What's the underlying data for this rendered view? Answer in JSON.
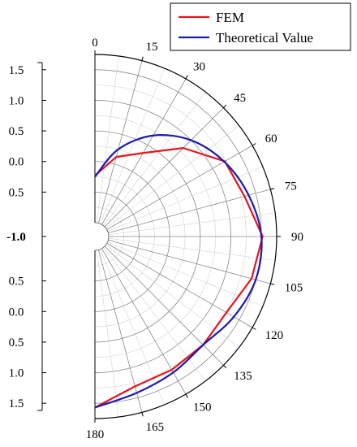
{
  "chart_data": {
    "type": "line",
    "subtype": "polar-half",
    "title": "",
    "angle_unit": "degrees",
    "angle_ticks": [
      "0",
      "15",
      "30",
      "45",
      "60",
      "75",
      "90",
      "105",
      "120",
      "135",
      "150",
      "165",
      "180"
    ],
    "radial_axis": {
      "tick_labels": [
        "1.5",
        "1.0",
        "0.5",
        "0.0",
        "-0.5",
        "-1.0",
        "-0.5",
        "0.0",
        "0.5",
        "1.0",
        "1.5"
      ],
      "bold_label": "-1.0",
      "rlim": [
        -1.0,
        1.75
      ]
    },
    "grid": true,
    "legend": {
      "placement": "top-right",
      "entries": [
        {
          "label": "FEM",
          "color": "#e8141c"
        },
        {
          "label": "Theoretical Value",
          "color": "#1a1ab4"
        }
      ]
    },
    "series": [
      {
        "name": "FEM",
        "color": "#e8141c",
        "points": [
          {
            "theta": 0,
            "r": -0.23
          },
          {
            "theta": 15,
            "r": 0.12
          },
          {
            "theta": 30,
            "r": 0.35
          },
          {
            "theta": 45,
            "r": 0.82
          },
          {
            "theta": 60,
            "r": 1.23
          },
          {
            "theta": 75,
            "r": 1.31
          },
          {
            "theta": 90,
            "r": 1.52
          },
          {
            "theta": 105,
            "r": 1.43
          },
          {
            "theta": 120,
            "r": 1.26
          },
          {
            "theta": 135,
            "r": 1.28
          },
          {
            "theta": 150,
            "r": 1.29
          },
          {
            "theta": 165,
            "r": 1.31
          },
          {
            "theta": 180,
            "r": 1.57
          }
        ]
      },
      {
        "name": "Theoretical Value",
        "color": "#1a1ab4",
        "points": [
          {
            "theta": 0,
            "r": -0.25
          },
          {
            "theta": 15,
            "r": 0.25
          },
          {
            "theta": 30,
            "r": 0.68
          },
          {
            "theta": 45,
            "r": 1.0
          },
          {
            "theta": 60,
            "r": 1.22
          },
          {
            "theta": 75,
            "r": 1.38
          },
          {
            "theta": 90,
            "r": 1.5
          },
          {
            "theta": 105,
            "r": 1.5
          },
          {
            "theta": 120,
            "r": 1.4
          },
          {
            "theta": 135,
            "r": 1.28
          },
          {
            "theta": 150,
            "r": 1.34
          },
          {
            "theta": 165,
            "r": 1.42
          },
          {
            "theta": 180,
            "r": 1.57
          }
        ]
      }
    ]
  }
}
